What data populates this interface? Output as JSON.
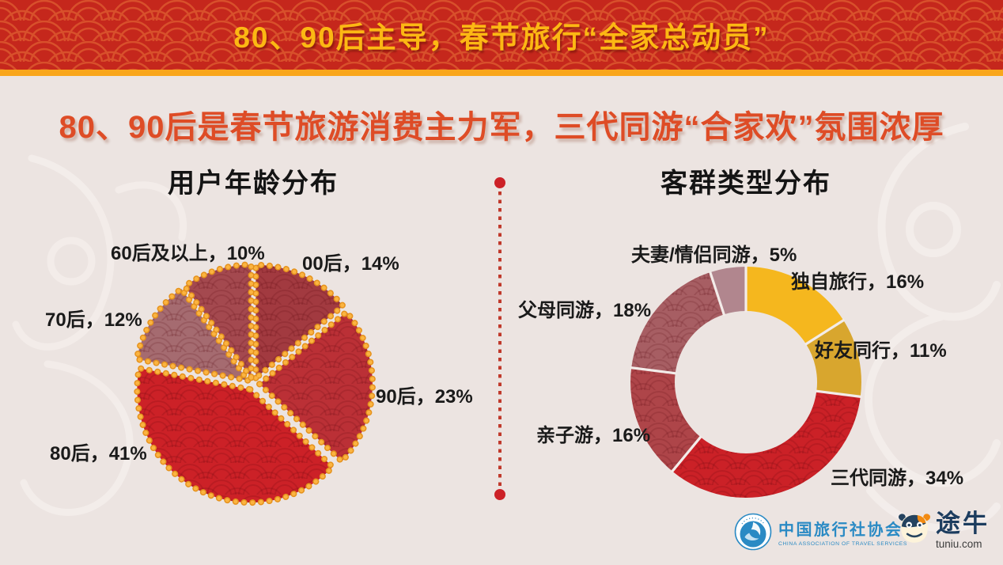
{
  "banner": {
    "title": "80、90后主导，春节旅行“全家总动员”"
  },
  "subtitle": "80、90后是春节旅游消费主力军，三代同游“合家欢”氛围浓厚",
  "colors": {
    "banner_red": "#c5271c",
    "banner_scale_line": "#d8502b",
    "accent_yellow_stripe": "#f9a61b",
    "banner_text_yellow": "#fcb813",
    "subtitle_orange": "#de4c26",
    "background": "#ece4e1",
    "divider_red": "#c0392b",
    "pie_dot_border": "#f5a425",
    "label_text": "#1a1a1a"
  },
  "chart_data": [
    {
      "type": "pie",
      "title": "用户年龄分布",
      "direction": "clockwise",
      "start_angle_deg": 0,
      "labels": [
        "00后",
        "90后",
        "80后",
        "70后",
        "60后及以上"
      ],
      "values": [
        14,
        23,
        41,
        12,
        10
      ],
      "unit": "%",
      "label_texts": [
        "00后，14%",
        "90后，23%",
        "80后，41%",
        "70后，12%",
        "60后及以上，10%"
      ],
      "colors": [
        "#a23a40",
        "#bb3036",
        "#cc2127",
        "#a56b70",
        "#a4494f"
      ],
      "patterned": [
        true,
        true,
        true,
        true,
        true
      ],
      "style": {
        "exploded": true,
        "dotted_border": true,
        "dot_color_outer": "#e5921d",
        "dot_color_inner": "#fbb441"
      }
    },
    {
      "type": "donut",
      "title": "客群类型分布",
      "direction": "clockwise",
      "start_angle_deg": 0,
      "labels": [
        "独自旅行",
        "好友同行",
        "三代同游",
        "亲子游",
        "父母同游",
        "夫妻/情侣同游"
      ],
      "values": [
        16,
        11,
        34,
        16,
        18,
        5
      ],
      "unit": "%",
      "label_texts": [
        "独自旅行，16%",
        "好友同行，11%",
        "三代同游，34%",
        "亲子游，16%",
        "父母同游，18%",
        "夫妻/情侣同游，5%"
      ],
      "colors": [
        "#f5b71e",
        "#d8a62e",
        "#cb2127",
        "#ae4549",
        "#a75e63",
        "#b1868e"
      ],
      "patterned": [
        false,
        false,
        true,
        true,
        true,
        false
      ],
      "style": {
        "segment_gap_color": "#f3ece9"
      }
    }
  ],
  "footer": {
    "cats_logo": {
      "name_cn": "中国旅行社协会",
      "name_en": "CHINA ASSOCIATION OF TRAVEL SERVICES"
    },
    "tuniu_logo": {
      "name_cn": "途牛",
      "domain": "tuniu.com"
    }
  }
}
